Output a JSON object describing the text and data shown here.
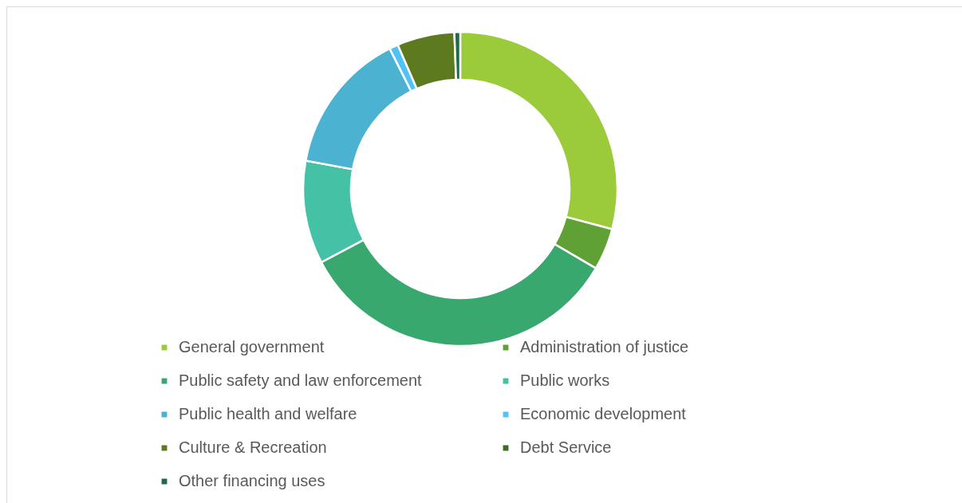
{
  "chart_data": {
    "type": "donut",
    "categories": [
      "General government",
      "Administration of justice",
      "Public safety and law enforcement",
      "Public works",
      "Public health and welfare",
      "Economic development",
      "Culture & Recreation",
      "Debt Service",
      "Other financing uses"
    ],
    "values": [
      29.1,
      4.3,
      33.8,
      10.6,
      14.7,
      0.9,
      5.9,
      null,
      0.6
    ],
    "colors": [
      "#9bcb3b",
      "#5fa134",
      "#38a86e",
      "#45c2a5",
      "#4bb3d1",
      "#4fc3f7",
      "#5d7a1f",
      "#3d6b22",
      "#1e6b4a"
    ],
    "legend": "bottom"
  }
}
